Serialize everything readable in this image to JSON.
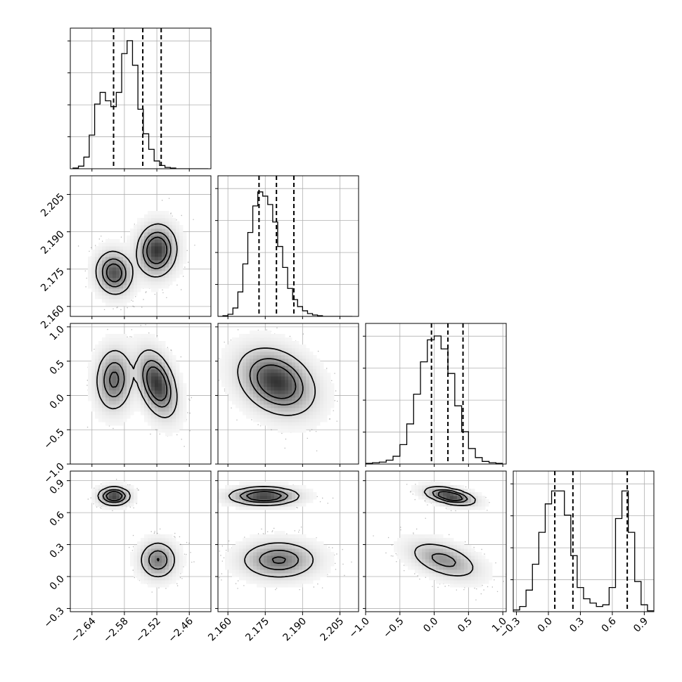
{
  "chart_data": {
    "type": "corner",
    "n_params": 4,
    "colors": {
      "line": "#000000",
      "grid": "#b0b0b0",
      "scatter": "#000000",
      "fill_dark": "#333333"
    },
    "grid": true,
    "params": [
      {
        "range": [
          -2.68,
          -2.42
        ],
        "ticks": [
          -2.64,
          -2.58,
          -2.52,
          -2.46
        ],
        "tick_labels": [
          "−2.64",
          "−2.58",
          "−2.52",
          "−2.46"
        ],
        "quantiles": [
          -2.6,
          -2.546,
          -2.512
        ]
      },
      {
        "range": [
          2.156,
          2.2125
        ],
        "ticks": [
          2.16,
          2.175,
          2.19,
          2.205
        ],
        "tick_labels": [
          "2.160",
          "2.175",
          "2.190",
          "2.205"
        ],
        "quantiles": [
          2.1725,
          2.1795,
          2.1865
        ]
      },
      {
        "range": [
          -1.0,
          1.05
        ],
        "ticks": [
          -1.0,
          -0.5,
          0.0,
          0.5,
          1.0
        ],
        "tick_labels": [
          "−1.0",
          "−0.5",
          "0.0",
          "0.5",
          "1.0"
        ],
        "quantiles": [
          -0.04,
          0.2,
          0.42
        ]
      },
      {
        "range": [
          -0.33,
          0.99
        ],
        "ticks": [
          -0.3,
          0.0,
          0.3,
          0.6,
          0.9
        ],
        "tick_labels": [
          "−0.3",
          "0.0",
          "0.3",
          "0.6",
          "0.9"
        ],
        "quantiles": [
          0.06,
          0.23,
          0.74
        ]
      }
    ],
    "histograms": [
      {
        "bins": [
          -2.675,
          -2.665,
          -2.655,
          -2.645,
          -2.635,
          -2.625,
          -2.615,
          -2.605,
          -2.595,
          -2.585,
          -2.575,
          -2.565,
          -2.555,
          -2.545,
          -2.535,
          -2.525,
          -2.515,
          -2.505,
          -2.495,
          -2.485,
          -2.475,
          -2.465,
          -2.455,
          -2.445,
          -2.435,
          -2.425
        ],
        "counts": [
          1,
          4,
          18,
          52,
          100,
          118,
          105,
          96,
          118,
          178,
          198,
          160,
          92,
          54,
          30,
          12,
          5,
          2,
          1,
          0,
          0,
          0,
          0,
          0,
          0
        ],
        "ymax": 200
      },
      {
        "bins": [
          2.156,
          2.158,
          2.16,
          2.162,
          2.164,
          2.166,
          2.168,
          2.17,
          2.172,
          2.174,
          2.176,
          2.178,
          2.18,
          2.182,
          2.184,
          2.186,
          2.188,
          2.19,
          2.192,
          2.194,
          2.196,
          2.198,
          2.2,
          2.202,
          2.204,
          2.206,
          2.208,
          2.21
        ],
        "counts": [
          0,
          1,
          3,
          12,
          35,
          75,
          120,
          158,
          178,
          172,
          160,
          135,
          100,
          70,
          40,
          24,
          14,
          8,
          4,
          2,
          1,
          0,
          0,
          0,
          0,
          0,
          0
        ],
        "ymax": 185
      },
      {
        "bins": [
          -1.0,
          -0.9,
          -0.8,
          -0.7,
          -0.6,
          -0.5,
          -0.4,
          -0.3,
          -0.2,
          -0.1,
          0.0,
          0.1,
          0.2,
          0.3,
          0.4,
          0.5,
          0.6,
          0.7,
          0.8,
          0.9,
          1.0
        ],
        "counts": [
          1,
          2,
          3,
          6,
          12,
          30,
          62,
          108,
          158,
          192,
          198,
          178,
          140,
          90,
          50,
          24,
          10,
          4,
          2,
          1
        ],
        "ymax": 200
      },
      {
        "bins": [
          -0.33,
          -0.27,
          -0.21,
          -0.15,
          -0.09,
          -0.03,
          0.03,
          0.09,
          0.15,
          0.21,
          0.27,
          0.33,
          0.39,
          0.45,
          0.51,
          0.57,
          0.63,
          0.69,
          0.75,
          0.81,
          0.87,
          0.93,
          0.99
        ],
        "counts": [
          2,
          6,
          25,
          55,
          92,
          125,
          140,
          140,
          112,
          65,
          28,
          15,
          10,
          6,
          8,
          28,
          108,
          140,
          92,
          35,
          8,
          1
        ],
        "ymax": 150
      }
    ],
    "pairs": [
      {
        "x": 0,
        "y": 1,
        "modes": [
          {
            "center": [
              -2.599,
              2.1735
            ],
            "cov": [
              [
                0.0003,
                -5e-06
              ],
              [
                -5e-06,
                2e-05
              ]
            ],
            "weight": 0.4
          },
          {
            "center": [
              -2.52,
              2.1825
            ],
            "cov": [
              [
                0.00034,
                5.5e-06
              ],
              [
                5.5e-06,
                2.8e-05
              ]
            ],
            "weight": 0.6
          }
        ]
      },
      {
        "x": 0,
        "y": 2,
        "modes": [
          {
            "center": [
              -2.599,
              0.23
            ],
            "cov": [
              [
                0.0003,
                0.0002
              ],
              [
                0.0002,
                0.055
              ]
            ],
            "weight": 0.4
          },
          {
            "center": [
              -2.52,
              0.17
            ],
            "cov": [
              [
                0.00034,
                -0.0018
              ],
              [
                -0.0018,
                0.06
              ]
            ],
            "weight": 0.6
          }
        ]
      },
      {
        "x": 1,
        "y": 2,
        "modes": [
          {
            "center": [
              2.1795,
              0.2
            ],
            "cov": [
              [
                6e-05,
                -0.00055
              ],
              [
                -0.00055,
                0.06
              ]
            ],
            "weight": 1.0
          }
        ]
      },
      {
        "x": 0,
        "y": 3,
        "modes": [
          {
            "center": [
              -2.599,
              0.755
            ],
            "cov": [
              [
                0.00022,
                0.0
              ],
              [
                0.0,
                0.0018
              ]
            ],
            "weight": 0.4
          },
          {
            "center": [
              -2.518,
              0.155
            ],
            "cov": [
              [
                0.0003,
                0.0
              ],
              [
                0.0,
                0.008
              ]
            ],
            "weight": 0.6
          }
        ]
      },
      {
        "x": 1,
        "y": 3,
        "modes": [
          {
            "center": [
              2.1745,
              0.755
            ],
            "cov": [
              [
                5e-05,
                0.0
              ],
              [
                0.0,
                0.0018
              ]
            ],
            "weight": 0.4
          },
          {
            "center": [
              2.1805,
              0.155
            ],
            "cov": [
              [
                6e-05,
                0.0
              ],
              [
                0.0,
                0.008
              ]
            ],
            "weight": 0.6
          }
        ]
      },
      {
        "x": 2,
        "y": 3,
        "modes": [
          {
            "center": [
              0.23,
              0.755
            ],
            "cov": [
              [
                0.035,
                -0.004
              ],
              [
                -0.004,
                0.0018
              ]
            ],
            "weight": 0.4
          },
          {
            "center": [
              0.14,
              0.155
            ],
            "cov": [
              [
                0.07,
                -0.012
              ],
              [
                -0.012,
                0.0085
              ]
            ],
            "weight": 0.6
          }
        ]
      }
    ]
  }
}
